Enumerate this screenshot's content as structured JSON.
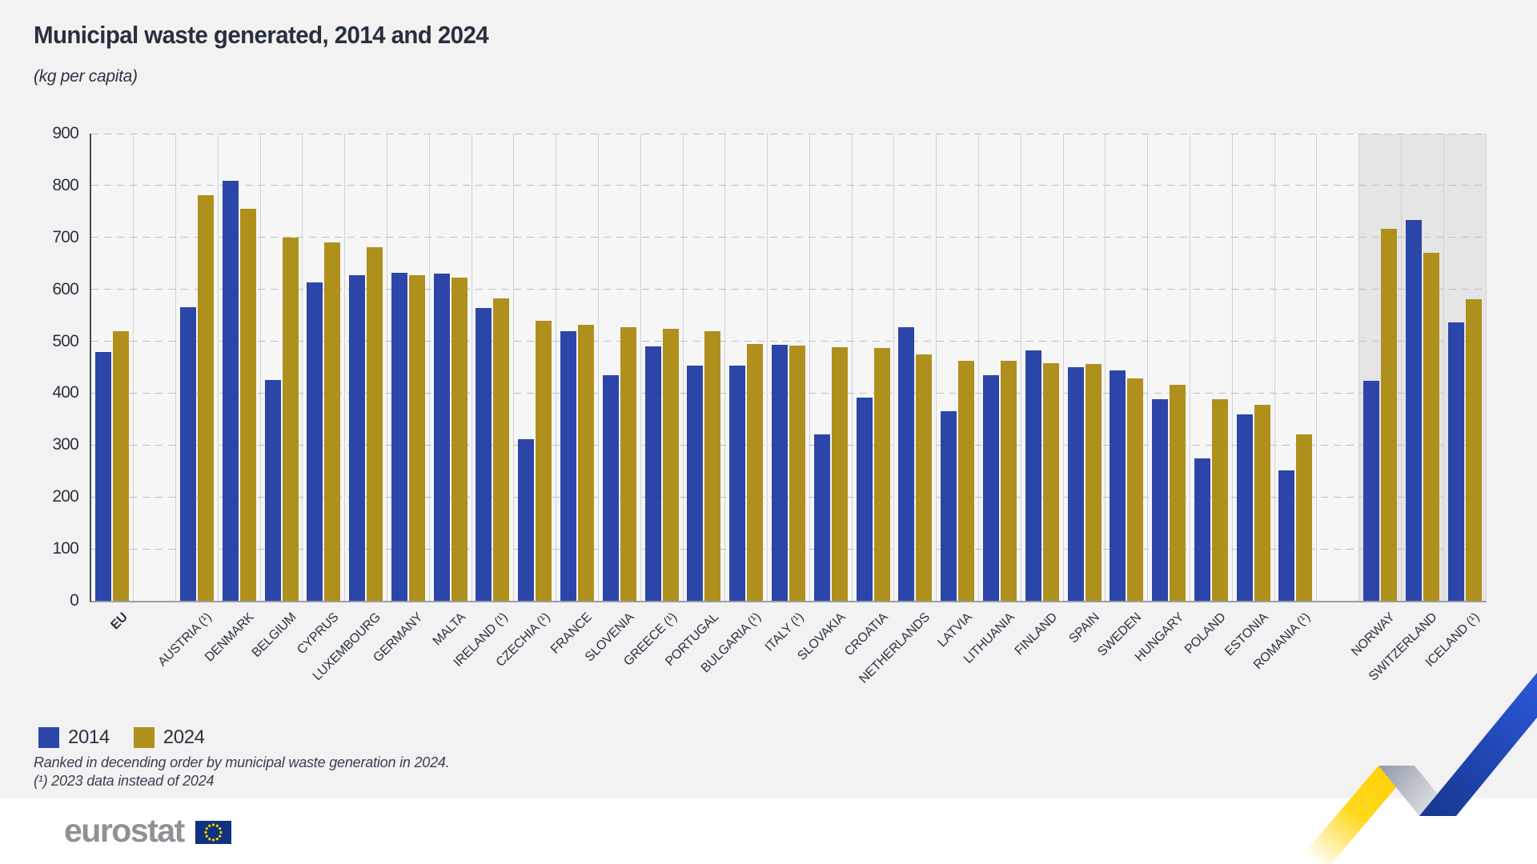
{
  "page": {
    "title": "Municipal waste generated, 2014 and 2024",
    "subtitle": "(kg per capita)",
    "footnote_line1": "Ranked in decending order by municipal waste generation in 2024.",
    "footnote_line2": "(¹) 2023 data instead of 2024",
    "logo_text": "eurostat"
  },
  "chart_data": {
    "type": "bar",
    "title": "Municipal waste generated, 2014 and 2024",
    "subtitle": "(kg per capita)",
    "xlabel": "",
    "ylabel": "kg per capita",
    "ylim": [
      0,
      900
    ],
    "ytick_step": 100,
    "yticks": [
      0,
      100,
      200,
      300,
      400,
      500,
      600,
      700,
      800,
      900
    ],
    "grid": "horizontal-dashed",
    "legend_position": "bottom-left",
    "legend": [
      {
        "label": "2014",
        "color": "#2b46a8"
      },
      {
        "label": "2024",
        "color": "#b0901d"
      }
    ],
    "series_keys": [
      "v2014",
      "v2024"
    ],
    "colors": {
      "v2014": "#2b46a8",
      "v2024": "#b0901d"
    },
    "shaded_band_color": "#e5e5e6",
    "groups": [
      {
        "label": "EU",
        "bold": true,
        "v2014": 480,
        "v2024": 520
      },
      {
        "spacer": true
      },
      {
        "label": "AUSTRIA (¹)",
        "v2014": 566,
        "v2024": 782
      },
      {
        "label": "DENMARK",
        "v2014": 809,
        "v2024": 755
      },
      {
        "label": "BELGIUM",
        "v2014": 425,
        "v2024": 700
      },
      {
        "label": "CYPRUS",
        "v2014": 614,
        "v2024": 690
      },
      {
        "label": "LUXEMBOURG",
        "v2014": 627,
        "v2024": 681
      },
      {
        "label": "GERMANY",
        "v2014": 632,
        "v2024": 628
      },
      {
        "label": "MALTA",
        "v2014": 630,
        "v2024": 622
      },
      {
        "label": "IRELAND (¹)",
        "v2014": 564,
        "v2024": 582
      },
      {
        "label": "CZECHIA (¹)",
        "v2014": 311,
        "v2024": 540
      },
      {
        "label": "FRANCE",
        "v2014": 519,
        "v2024": 531
      },
      {
        "label": "SLOVENIA",
        "v2014": 434,
        "v2024": 527
      },
      {
        "label": "GREECE (¹)",
        "v2014": 490,
        "v2024": 524
      },
      {
        "label": "PORTUGAL",
        "v2014": 453,
        "v2024": 520
      },
      {
        "label": "BULGARIA (¹)",
        "v2014": 453,
        "v2024": 494
      },
      {
        "label": "ITALY (¹)",
        "v2014": 493,
        "v2024": 491
      },
      {
        "label": "SLOVAKIA",
        "v2014": 321,
        "v2024": 489
      },
      {
        "label": "CROATIA",
        "v2014": 392,
        "v2024": 487
      },
      {
        "label": "NETHERLANDS",
        "v2014": 527,
        "v2024": 475
      },
      {
        "label": "LATVIA",
        "v2014": 365,
        "v2024": 463
      },
      {
        "label": "LITHUANIA",
        "v2014": 434,
        "v2024": 463
      },
      {
        "label": "FINLAND",
        "v2014": 483,
        "v2024": 458
      },
      {
        "label": "SPAIN",
        "v2014": 450,
        "v2024": 456
      },
      {
        "label": "SWEDEN",
        "v2014": 444,
        "v2024": 428
      },
      {
        "label": "HUNGARY",
        "v2014": 388,
        "v2024": 416
      },
      {
        "label": "POLAND",
        "v2014": 274,
        "v2024": 389
      },
      {
        "label": "ESTONIA",
        "v2014": 359,
        "v2024": 377
      },
      {
        "label": "ROMANIA (¹)",
        "v2014": 251,
        "v2024": 320
      },
      {
        "spacer": true
      },
      {
        "label": "NORWAY",
        "shaded": true,
        "v2014": 424,
        "v2024": 716
      },
      {
        "label": "SWITZERLAND",
        "shaded": true,
        "v2014": 734,
        "v2024": 670
      },
      {
        "label": "ICELAND (¹)",
        "shaded": true,
        "v2014": 536,
        "v2024": 581
      }
    ]
  }
}
